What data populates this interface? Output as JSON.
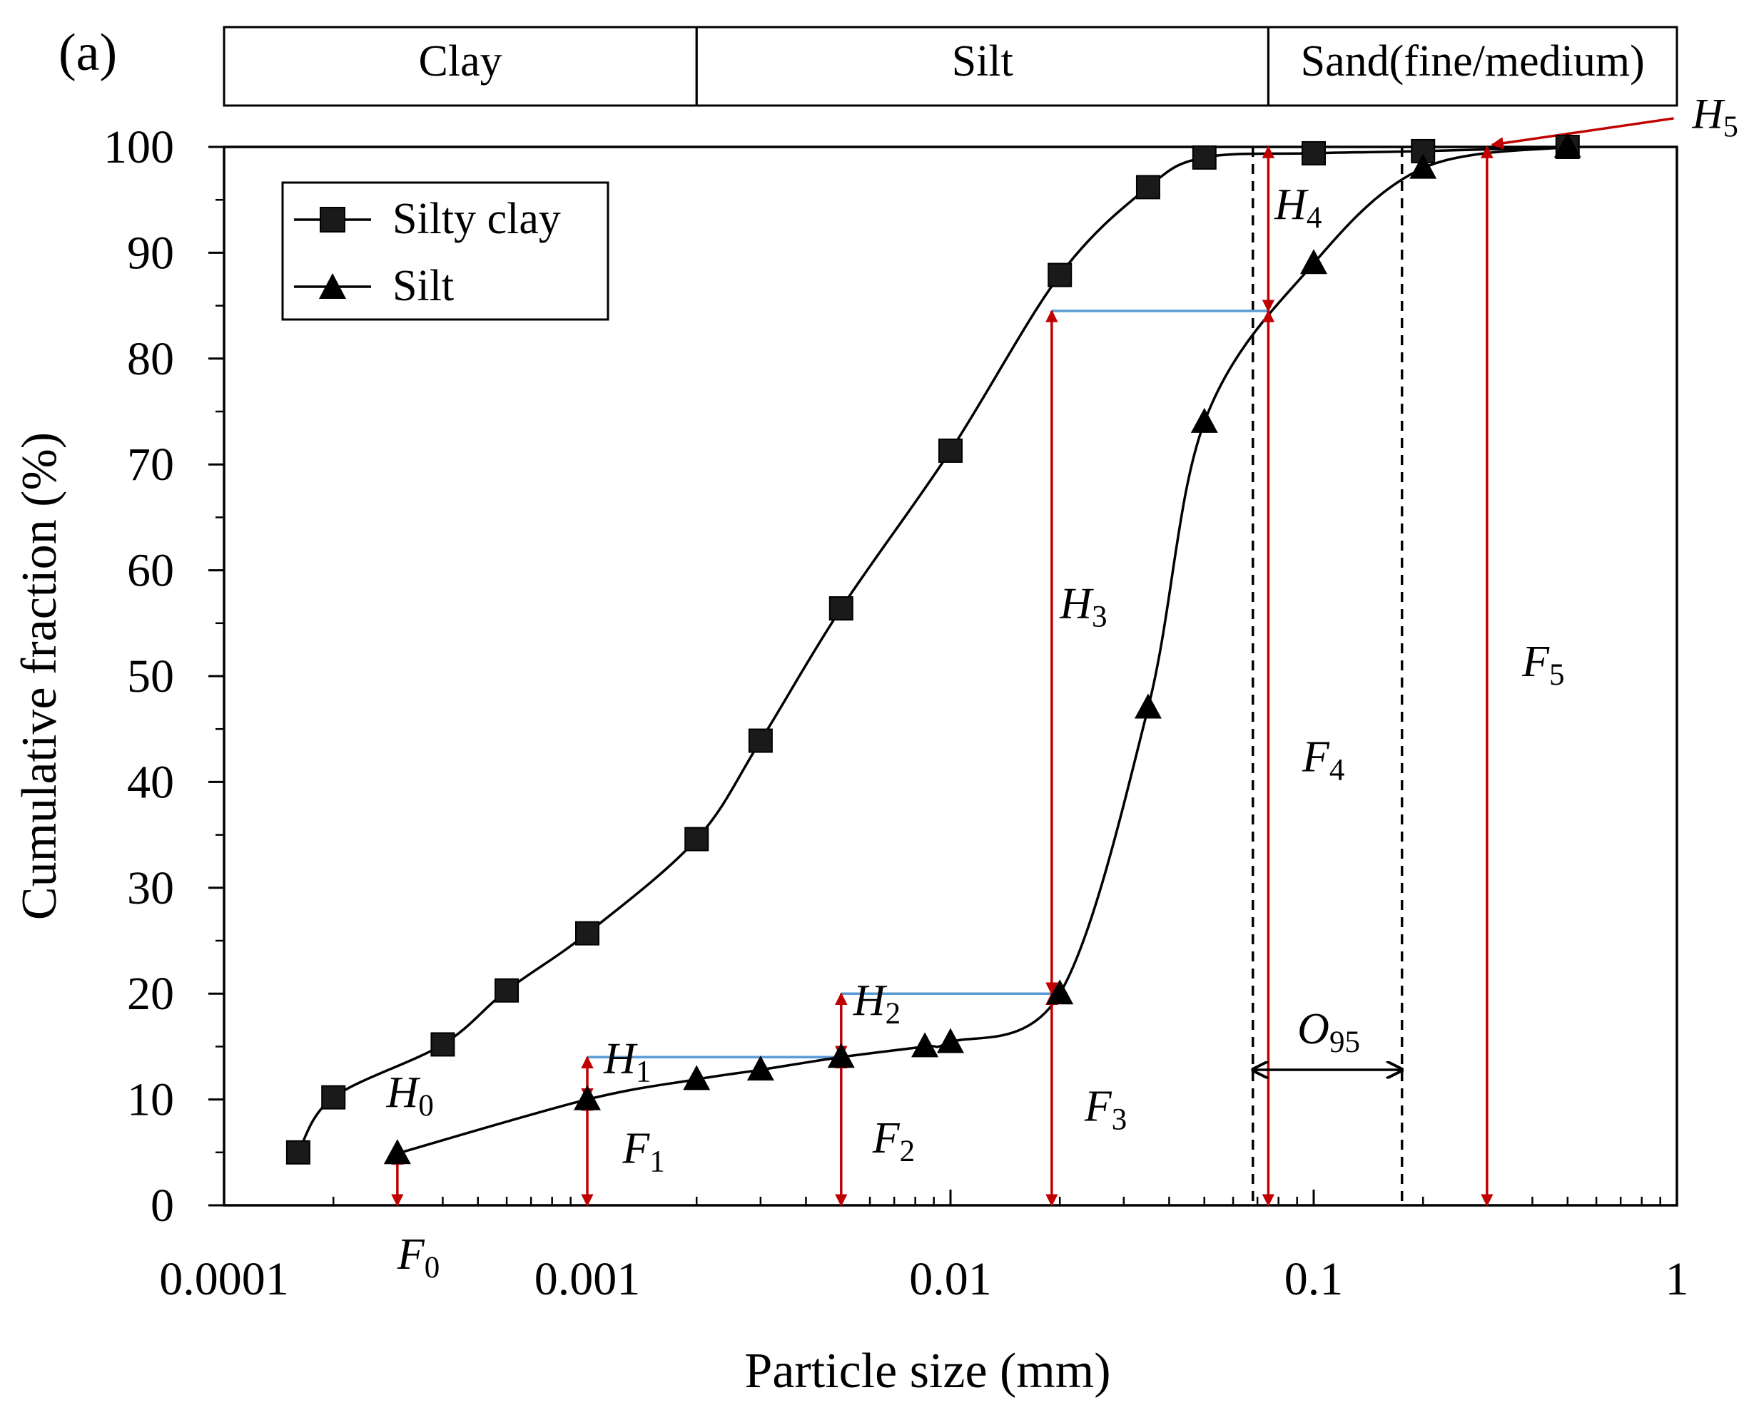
{
  "chart_data": {
    "type": "scatter",
    "panel_label": "(a)",
    "xlabel": "Particle size (mm)",
    "ylabel": "Cumulative  fraction (%)",
    "x_scale": "log",
    "xlim": [
      0.0001,
      1
    ],
    "ylim": [
      0,
      100
    ],
    "x_ticks": [
      0.0001,
      0.001,
      0.01,
      0.1,
      1
    ],
    "x_tick_labels": [
      "0.0001",
      "0.001",
      "0.01",
      "0.1",
      "1"
    ],
    "y_ticks": [
      0,
      10,
      20,
      30,
      40,
      50,
      60,
      70,
      80,
      90,
      100
    ],
    "y_tick_labels": [
      "0",
      "10",
      "20",
      "30",
      "40",
      "50",
      "60",
      "70",
      "80",
      "90",
      "100"
    ],
    "grid": false,
    "legend_position": "top-left",
    "soil_classes": [
      {
        "label": "Clay",
        "from": 0.0001,
        "to": 0.002
      },
      {
        "label": "Silt",
        "from": 0.002,
        "to": 0.075
      },
      {
        "label": "Sand(fine/medium)",
        "from": 0.075,
        "to": 1
      }
    ],
    "series": [
      {
        "name": "Silty clay",
        "marker": "square",
        "color": "#000000",
        "points": [
          [
            0.00016,
            5.0
          ],
          [
            0.0002,
            10.2
          ],
          [
            0.0004,
            15.2
          ],
          [
            0.0006,
            20.3
          ],
          [
            0.001,
            25.7
          ],
          [
            0.002,
            34.6
          ],
          [
            0.003,
            43.9
          ],
          [
            0.005,
            56.4
          ],
          [
            0.01,
            71.3
          ],
          [
            0.02,
            87.9
          ],
          [
            0.035,
            96.2
          ],
          [
            0.05,
            99.0
          ],
          [
            0.1,
            99.4
          ],
          [
            0.2,
            99.6
          ],
          [
            0.5,
            100.0
          ]
        ]
      },
      {
        "name": "Silt",
        "marker": "triangle",
        "color": "#000000",
        "points": [
          [
            0.0003,
            4.9
          ],
          [
            0.001,
            10.0
          ],
          [
            0.002,
            11.9
          ],
          [
            0.003,
            12.8
          ],
          [
            0.005,
            14.0
          ],
          [
            0.0085,
            15.0
          ],
          [
            0.01,
            15.4
          ],
          [
            0.02,
            20.0
          ],
          [
            0.035,
            47.0
          ],
          [
            0.05,
            74.0
          ],
          [
            0.1,
            89.0
          ],
          [
            0.2,
            98.0
          ],
          [
            0.5,
            100.0
          ]
        ]
      }
    ],
    "reference_lines": [
      {
        "type": "vertical-dashed",
        "x": 0.068
      },
      {
        "type": "vertical-dashed",
        "x": 0.175
      }
    ],
    "annotations": [
      {
        "kind": "double-arrow",
        "x": 0.0003,
        "y0": 0,
        "y1": 4.9,
        "color": "#c00000",
        "label_sym": "F",
        "label_sub": "0",
        "label_at": [
          0.0003,
          -6
        ]
      },
      {
        "kind": "double-arrow",
        "x": 0.001,
        "y0": 0,
        "y1": 10.0,
        "color": "#c00000",
        "label_sym": "F",
        "label_sub": "1",
        "label_at": [
          0.00125,
          4
        ]
      },
      {
        "kind": "double-arrow",
        "x": 0.005,
        "y0": 0,
        "y1": 14.0,
        "color": "#c00000",
        "label_sym": "F",
        "label_sub": "2",
        "label_at": [
          0.0061,
          5
        ]
      },
      {
        "kind": "double-arrow",
        "x": 0.019,
        "y0": 0,
        "y1": 20.0,
        "color": "#c00000",
        "label_sym": "F",
        "label_sub": "3",
        "label_at": [
          0.0234,
          8
        ]
      },
      {
        "kind": "double-arrow",
        "x": 0.075,
        "y0": 0,
        "y1": 84.5,
        "color": "#c00000",
        "label_sym": "F",
        "label_sub": "4",
        "label_at": [
          0.093,
          41
        ]
      },
      {
        "kind": "double-arrow",
        "x": 0.3,
        "y0": 0,
        "y1": 100.0,
        "color": "#c00000",
        "label_sym": "F",
        "label_sub": "5",
        "label_at": [
          0.375,
          50
        ]
      },
      {
        "kind": "double-arrow",
        "x": 0.0003,
        "y0": 0,
        "y1": 4.9,
        "color": "#c00000",
        "label_sym": "H",
        "label_sub": "0",
        "label_at": [
          0.00028,
          9.3
        ],
        "hide_arrow": true
      },
      {
        "kind": "double-arrow",
        "x": 0.001,
        "y0": 10.0,
        "y1": 14.0,
        "color": "#c00000",
        "label_sym": "H",
        "label_sub": "1",
        "label_at": [
          0.00111,
          12.5
        ]
      },
      {
        "kind": "double-arrow",
        "x": 0.005,
        "y0": 14.0,
        "y1": 20.0,
        "color": "#c00000",
        "label_sym": "H",
        "label_sub": "2",
        "label_at": [
          0.0054,
          18.0
        ]
      },
      {
        "kind": "double-arrow",
        "x": 0.019,
        "y0": 20.0,
        "y1": 84.5,
        "color": "#c00000",
        "label_sym": "H",
        "label_sub": "3",
        "label_at": [
          0.02,
          55.5
        ]
      },
      {
        "kind": "double-arrow",
        "x": 0.075,
        "y0": 84.5,
        "y1": 100.0,
        "color": "#c00000",
        "label_sym": "H",
        "label_sub": "4",
        "label_at": [
          0.078,
          93.2
        ]
      },
      {
        "kind": "pointer-arrow",
        "from": [
          0.98,
          102.7
        ],
        "to": [
          0.31,
          100.2
        ],
        "color": "#c00000",
        "label_sym": "H",
        "label_sub": "5",
        "label_at": [
          0.98,
          101.8
        ]
      },
      {
        "kind": "hline",
        "x0": 0.001,
        "x1": 0.005,
        "y": 14.0,
        "color": "#5b9bd5"
      },
      {
        "kind": "hline",
        "x0": 0.005,
        "x1": 0.021,
        "y": 20.0,
        "color": "#5b9bd5"
      },
      {
        "kind": "hline",
        "x0": 0.019,
        "x1": 0.075,
        "y": 84.5,
        "color": "#5b9bd5"
      },
      {
        "kind": "double-arrow-h",
        "x0": 0.068,
        "x1": 0.175,
        "y": 12.8,
        "color": "#000000",
        "label_sym": "O",
        "label_sub": "95",
        "label_at": [
          0.11,
          15.3
        ]
      }
    ]
  }
}
